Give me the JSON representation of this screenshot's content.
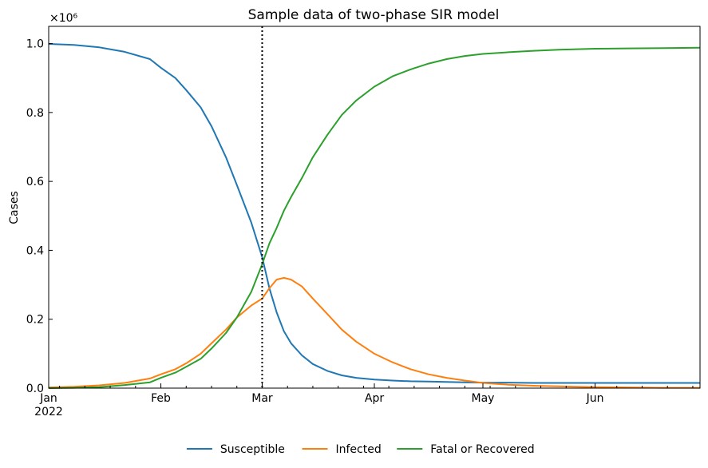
{
  "chart_data": {
    "type": "line",
    "title": "Sample data of two-phase SIR model",
    "xlabel": "",
    "ylabel": "Cases",
    "y_scale_label": "×10⁶",
    "y_multiplier": 1000000,
    "ylim": [
      0,
      1.05
    ],
    "xlim": [
      "2022-01-01",
      "2022-06-30"
    ],
    "yticks": [
      0.0,
      0.2,
      0.4,
      0.6,
      0.8,
      1.0
    ],
    "xticks": [
      {
        "date": "2022-01-01",
        "label": "Jan",
        "sublabel": "2022"
      },
      {
        "date": "2022-02-01",
        "label": "Feb",
        "sublabel": ""
      },
      {
        "date": "2022-03-01",
        "label": "Mar",
        "sublabel": ""
      },
      {
        "date": "2022-04-01",
        "label": "Apr",
        "sublabel": ""
      },
      {
        "date": "2022-05-01",
        "label": "May",
        "sublabel": ""
      },
      {
        "date": "2022-06-01",
        "label": "Jun",
        "sublabel": ""
      }
    ],
    "vline": {
      "date": "2022-03-01",
      "style": "dotted",
      "color": "#000000"
    },
    "grid": false,
    "legend_position": "bottom-center",
    "x": [
      "2022-01-01",
      "2022-01-08",
      "2022-01-15",
      "2022-01-22",
      "2022-01-29",
      "2022-02-01",
      "2022-02-05",
      "2022-02-08",
      "2022-02-12",
      "2022-02-15",
      "2022-02-19",
      "2022-02-22",
      "2022-02-26",
      "2022-03-01",
      "2022-03-03",
      "2022-03-05",
      "2022-03-07",
      "2022-03-09",
      "2022-03-12",
      "2022-03-15",
      "2022-03-19",
      "2022-03-23",
      "2022-03-27",
      "2022-04-01",
      "2022-04-06",
      "2022-04-11",
      "2022-04-16",
      "2022-04-21",
      "2022-04-26",
      "2022-05-01",
      "2022-05-08",
      "2022-05-15",
      "2022-05-22",
      "2022-06-01",
      "2022-06-10",
      "2022-06-20",
      "2022-06-30"
    ],
    "series": [
      {
        "name": "Susceptible",
        "color": "#1f77b4",
        "values": [
          0.999,
          0.996,
          0.989,
          0.976,
          0.955,
          0.93,
          0.9,
          0.865,
          0.815,
          0.76,
          0.67,
          0.59,
          0.48,
          0.38,
          0.29,
          0.22,
          0.165,
          0.13,
          0.095,
          0.07,
          0.05,
          0.037,
          0.03,
          0.025,
          0.022,
          0.02,
          0.019,
          0.018,
          0.017,
          0.016,
          0.016,
          0.015,
          0.015,
          0.015,
          0.015,
          0.015,
          0.015
        ]
      },
      {
        "name": "Infected",
        "color": "#ff7f0e",
        "values": [
          0.002,
          0.004,
          0.008,
          0.015,
          0.028,
          0.04,
          0.055,
          0.072,
          0.1,
          0.13,
          0.17,
          0.205,
          0.24,
          0.26,
          0.29,
          0.315,
          0.32,
          0.315,
          0.295,
          0.26,
          0.215,
          0.17,
          0.135,
          0.1,
          0.075,
          0.055,
          0.04,
          0.03,
          0.022,
          0.015,
          0.01,
          0.007,
          0.005,
          0.003,
          0.002,
          0.001,
          0.001
        ]
      },
      {
        "name": "Fatal or Recovered",
        "color": "#2ca02c",
        "values": [
          0.0,
          0.001,
          0.003,
          0.009,
          0.017,
          0.03,
          0.045,
          0.062,
          0.085,
          0.115,
          0.16,
          0.205,
          0.28,
          0.36,
          0.42,
          0.465,
          0.515,
          0.555,
          0.61,
          0.67,
          0.735,
          0.793,
          0.835,
          0.875,
          0.905,
          0.925,
          0.942,
          0.955,
          0.964,
          0.97,
          0.975,
          0.979,
          0.982,
          0.985,
          0.986,
          0.987,
          0.988
        ]
      }
    ]
  }
}
